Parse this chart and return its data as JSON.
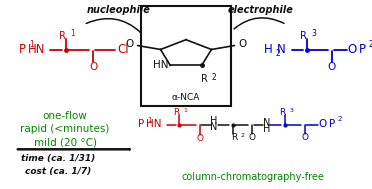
{
  "bg_color": "#ffffff",
  "red_color": "#cc0000",
  "blue_color": "#0000cc",
  "green_color": "#008800",
  "black_color": "#111111",
  "figsize": [
    3.72,
    1.89
  ],
  "dpi": 100,
  "nucleophile_label": "nucleophile",
  "electrophile_label": "electrophile",
  "nca_label": "α-NCA",
  "green_lines": [
    "one-flow",
    "rapid (<minutes)",
    "mild (20 °C)"
  ],
  "italic_lines": [
    "time (ca. 1/31)",
    "cost (ca. 1/7)"
  ],
  "product_label": "column-chromatography-free"
}
